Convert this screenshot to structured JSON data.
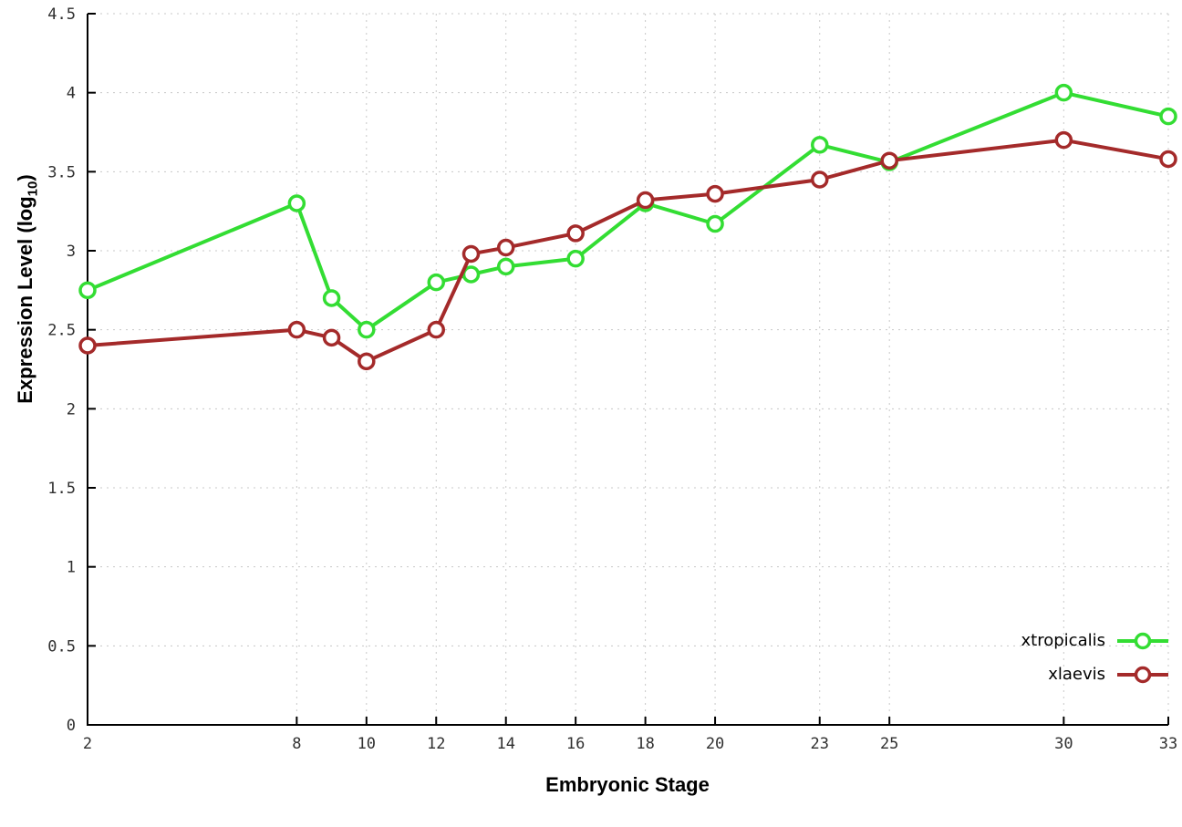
{
  "chart_data": {
    "type": "line",
    "title": "",
    "xlabel": "Embryonic Stage",
    "ylabel": "Expression Level (log10)",
    "ylabel_parts": {
      "prefix": "Expression Level (log",
      "sub": "10",
      "suffix": ")"
    },
    "xlim": [
      2,
      33
    ],
    "ylim": [
      0,
      4.5
    ],
    "x_ticks": [
      2,
      8,
      10,
      12,
      14,
      16,
      18,
      20,
      23,
      25,
      30,
      33
    ],
    "y_ticks": [
      0,
      0.5,
      1,
      1.5,
      2,
      2.5,
      3,
      3.5,
      4,
      4.5
    ],
    "grid": true,
    "grid_color": "#c8c8c8",
    "axis_color": "#000000",
    "tick_label_color": "#303030",
    "marker": "open-circle",
    "legend_position": "bottom-right",
    "x": [
      2,
      8,
      9,
      10,
      12,
      13,
      14,
      16,
      18,
      20,
      23,
      25,
      30,
      33
    ],
    "series": [
      {
        "name": "xtropicalis",
        "color": "#33dd33",
        "values": [
          2.75,
          3.3,
          2.7,
          2.5,
          2.8,
          2.85,
          2.9,
          2.95,
          3.3,
          3.17,
          3.67,
          3.56,
          4.0,
          3.85
        ]
      },
      {
        "name": "xlaevis",
        "color": "#a42a2a",
        "values": [
          2.4,
          2.5,
          2.45,
          2.3,
          2.5,
          2.98,
          3.02,
          3.11,
          3.32,
          3.36,
          3.45,
          3.57,
          3.7,
          3.58
        ]
      }
    ]
  }
}
